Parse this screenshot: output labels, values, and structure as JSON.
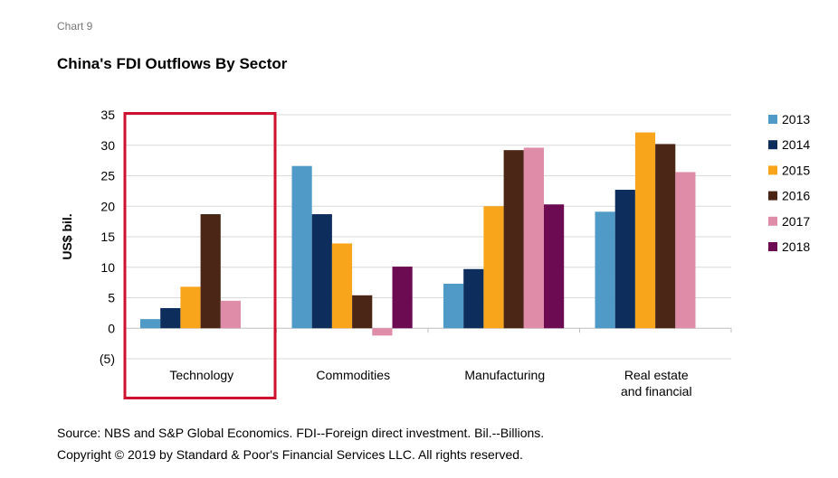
{
  "header": {
    "chart_number": "Chart 9",
    "title": "China's FDI Outflows By Sector"
  },
  "footer": {
    "source": "Source: NBS and S&P Global Economics. FDI--Foreign direct investment. Bil.--Billions.",
    "copyright": "Copyright © 2019 by Standard & Poor's Financial Services LLC. All rights reserved."
  },
  "colors": {
    "2013": "#4f9ac7",
    "2014": "#0d2d5c",
    "2015": "#f9a51b",
    "2016": "#4b2617",
    "2017": "#df8ca8",
    "2018": "#6c0a52",
    "highlight_box": "#d0102f",
    "grid": "#d9d9d9"
  },
  "chart_data": {
    "type": "bar",
    "title": "China's FDI Outflows By Sector",
    "xlabel": "",
    "ylabel": "US$ bil.",
    "ylim": [
      -5,
      35
    ],
    "y_ticks": [
      35,
      30,
      25,
      20,
      15,
      10,
      5,
      0,
      -5
    ],
    "y_tick_labels": [
      "35",
      "30",
      "25",
      "20",
      "15",
      "10",
      "5",
      "0",
      "(5)"
    ],
    "grid": true,
    "legend_position": "right",
    "categories": [
      [
        "Technology"
      ],
      [
        "Commodities"
      ],
      [
        "Manufacturing"
      ],
      [
        "Real estate",
        "and financial"
      ]
    ],
    "highlighted_category": "Technology",
    "series": [
      {
        "name": "2013",
        "values": [
          1.5,
          26.6,
          7.3,
          19.1
        ]
      },
      {
        "name": "2014",
        "values": [
          3.3,
          18.7,
          9.7,
          22.7
        ]
      },
      {
        "name": "2015",
        "values": [
          6.8,
          13.9,
          20.0,
          32.1
        ]
      },
      {
        "name": "2016",
        "values": [
          18.7,
          5.4,
          29.2,
          30.2
        ]
      },
      {
        "name": "2017",
        "values": [
          4.5,
          -1.2,
          29.6,
          25.6
        ]
      },
      {
        "name": "2018",
        "values": [
          null,
          10.1,
          20.3,
          null
        ]
      }
    ]
  }
}
